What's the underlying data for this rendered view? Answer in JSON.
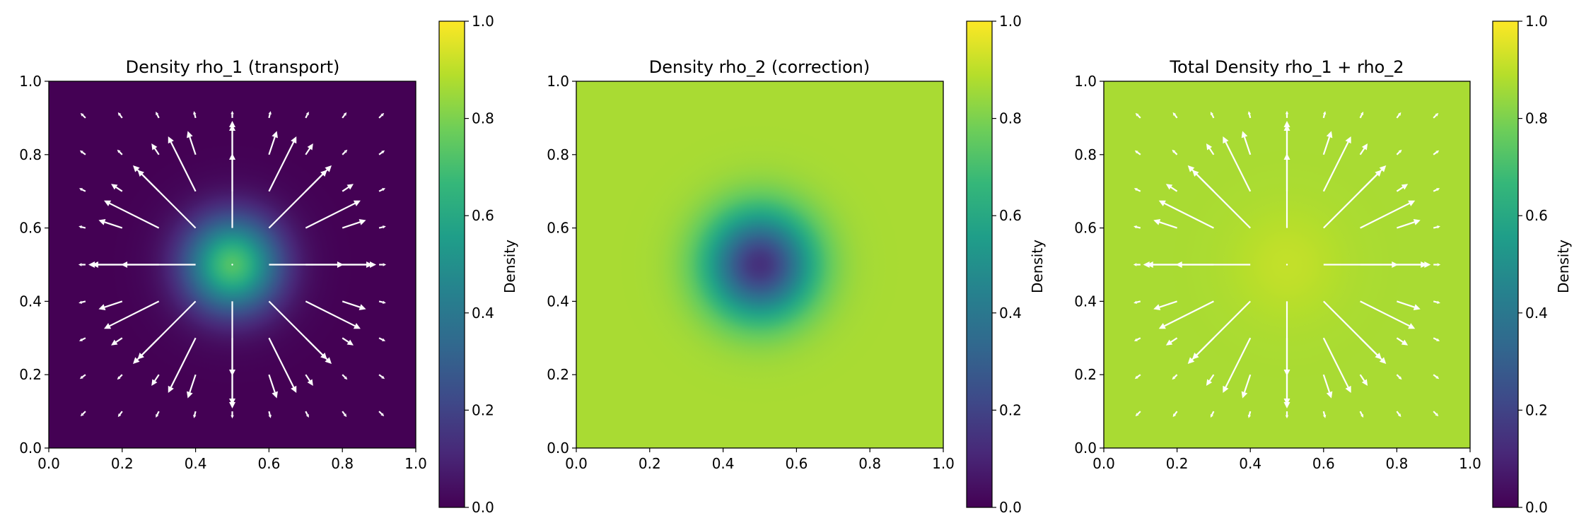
{
  "colorscale": {
    "name": "viridis",
    "stops": [
      "#440154",
      "#482878",
      "#3e4a89",
      "#31688e",
      "#26828e",
      "#1f9e89",
      "#35b779",
      "#6ece58",
      "#b5de2b",
      "#fde725"
    ]
  },
  "arrow_color": "#ffffff",
  "chart_data": [
    {
      "type": "heatmap",
      "title": "Density rho_1 (transport)",
      "field": "gaussian_peak",
      "field_params": {
        "center": [
          0.5,
          0.5
        ],
        "peak": 0.72,
        "background": 0.0,
        "sigma": 0.09
      },
      "quiver": true,
      "quiver_grid": [
        0.1,
        0.2,
        0.3,
        0.4,
        0.5,
        0.6,
        0.7,
        0.8,
        0.9
      ],
      "xlim": [
        0,
        1
      ],
      "ylim": [
        0,
        1
      ],
      "xticks": [
        "0.0",
        "0.2",
        "0.4",
        "0.6",
        "0.8",
        "1.0"
      ],
      "yticks": [
        "0.0",
        "0.2",
        "0.4",
        "0.6",
        "0.8",
        "1.0"
      ],
      "colorbar": {
        "label": "Density",
        "range": [
          0,
          1
        ],
        "ticks": [
          "0.0",
          "0.2",
          "0.4",
          "0.6",
          "0.8",
          "1.0"
        ]
      }
    },
    {
      "type": "heatmap",
      "title": "Density rho_2 (correction)",
      "field": "gaussian_dip",
      "field_params": {
        "center": [
          0.5,
          0.5
        ],
        "peak": 0.14,
        "background": 0.87,
        "sigma": 0.1
      },
      "quiver": false,
      "xlim": [
        0,
        1
      ],
      "ylim": [
        0,
        1
      ],
      "xticks": [
        "0.0",
        "0.2",
        "0.4",
        "0.6",
        "0.8",
        "1.0"
      ],
      "yticks": [
        "0.0",
        "0.2",
        "0.4",
        "0.6",
        "0.8",
        "1.0"
      ],
      "colorbar": {
        "label": "Density",
        "range": [
          0,
          1
        ],
        "ticks": [
          "0.0",
          "0.2",
          "0.4",
          "0.6",
          "0.8",
          "1.0"
        ]
      }
    },
    {
      "type": "heatmap",
      "title": "Total Density rho_1 + rho_2",
      "field": "gaussian_peak",
      "field_params": {
        "center": [
          0.5,
          0.5
        ],
        "peak": 0.91,
        "background": 0.87,
        "sigma": 0.1
      },
      "quiver": true,
      "quiver_grid": [
        0.1,
        0.2,
        0.3,
        0.4,
        0.5,
        0.6,
        0.7,
        0.8,
        0.9
      ],
      "xlim": [
        0,
        1
      ],
      "ylim": [
        0,
        1
      ],
      "xticks": [
        "0.0",
        "0.2",
        "0.4",
        "0.6",
        "0.8",
        "1.0"
      ],
      "yticks": [
        "0.0",
        "0.2",
        "0.4",
        "0.6",
        "0.8",
        "1.0"
      ],
      "colorbar": {
        "label": "Density",
        "range": [
          0,
          1
        ],
        "ticks": [
          "0.0",
          "0.2",
          "0.4",
          "0.6",
          "0.8",
          "1.0"
        ]
      }
    }
  ]
}
